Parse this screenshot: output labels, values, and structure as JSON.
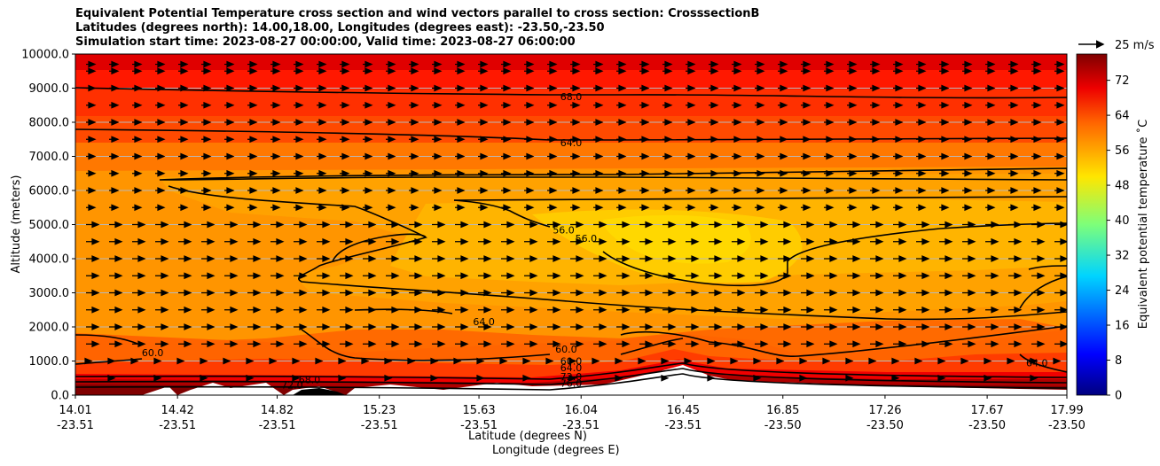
{
  "title": {
    "line1": "Equivalent Potential Temperature cross section and wind vectors parallel to cross section: CrosssectionB",
    "line2": "Latitudes (degrees north): 14.00,18.00, Longitudes (degrees east): -23.50,-23.50",
    "line3": "Simulation start time: 2023-08-27 00:00:00, Valid time: 2023-08-27 06:00:00"
  },
  "quiver_key": "25 m/s",
  "chart_data": {
    "type": "heatmap",
    "subtype": "filled contour cross section with wind vectors",
    "ylabel": "Altitude (meters)",
    "xlabel_line1": "Latitude (degrees N)",
    "xlabel_line2": "Longitude (degrees E)",
    "ylim": [
      0,
      10000
    ],
    "y_ticks": [
      "0.0",
      "1000.0",
      "2000.0",
      "3000.0",
      "4000.0",
      "5000.0",
      "6000.0",
      "7000.0",
      "8000.0",
      "9000.0",
      "10000.0"
    ],
    "y_tick_values": [
      0,
      1000,
      2000,
      3000,
      4000,
      5000,
      6000,
      7000,
      8000,
      9000,
      10000
    ],
    "x_ticks": [
      {
        "lat": "14.01",
        "lon": "-23.51"
      },
      {
        "lat": "14.42",
        "lon": "-23.51"
      },
      {
        "lat": "14.82",
        "lon": "-23.51"
      },
      {
        "lat": "15.23",
        "lon": "-23.51"
      },
      {
        "lat": "15.63",
        "lon": "-23.51"
      },
      {
        "lat": "16.04",
        "lon": "-23.51"
      },
      {
        "lat": "16.45",
        "lon": "-23.51"
      },
      {
        "lat": "16.85",
        "lon": "-23.50"
      },
      {
        "lat": "17.26",
        "lon": "-23.50"
      },
      {
        "lat": "17.67",
        "lon": "-23.50"
      },
      {
        "lat": "17.99",
        "lon": "-23.50"
      }
    ],
    "colorbar": {
      "label": "Equivalent potential temperature ˚C",
      "ticks": [
        "0",
        "8",
        "16",
        "24",
        "32",
        "40",
        "48",
        "56",
        "64",
        "72"
      ],
      "range": [
        0,
        78
      ],
      "colormap": "jet"
    },
    "contour_labels": [
      {
        "text": "68.0",
        "lat": 16.0,
        "alt": 8750
      },
      {
        "text": "64.0",
        "lat": 16.0,
        "alt": 7400
      },
      {
        "text": "56.0",
        "lat": 15.97,
        "alt": 4850
      },
      {
        "text": "56.0",
        "lat": 16.06,
        "alt": 4600
      },
      {
        "text": "64.0",
        "lat": 15.65,
        "alt": 2150
      },
      {
        "text": "60.0",
        "lat": 14.32,
        "alt": 1250
      },
      {
        "text": "60.0",
        "lat": 15.98,
        "alt": 1350
      },
      {
        "text": "60.0",
        "lat": 16.0,
        "alt": 1000
      },
      {
        "text": "64.0",
        "lat": 16.0,
        "alt": 800
      },
      {
        "text": "68.0",
        "lat": 14.95,
        "alt": 450
      },
      {
        "text": "72.0",
        "lat": 14.88,
        "alt": 300
      },
      {
        "text": "72.0",
        "lat": 16.0,
        "alt": 550
      },
      {
        "text": "76.0",
        "lat": 16.0,
        "alt": 350
      },
      {
        "text": "64.0",
        "lat": 17.87,
        "alt": 950
      }
    ],
    "wind": "vectors parallel to cross section, predominantly eastward (left-to-right), ~5-10 m/s",
    "grid": true
  }
}
